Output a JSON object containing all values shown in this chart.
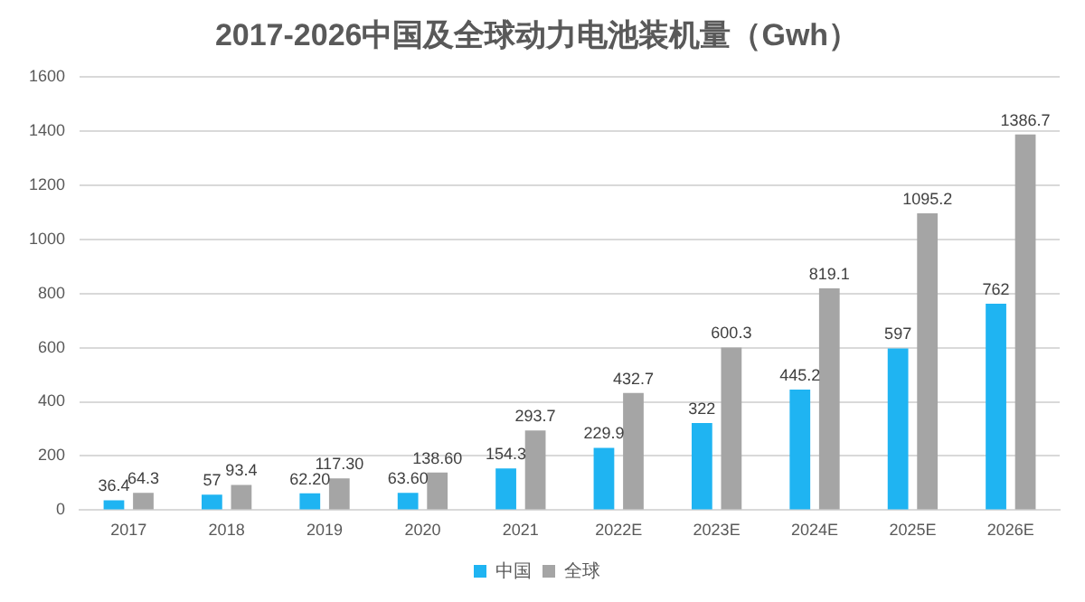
{
  "chart_data": {
    "type": "bar",
    "title": "2017-2026中国及全球动力电池装机量（Gwh）",
    "categories": [
      "2017",
      "2018",
      "2019",
      "2020",
      "2021",
      "2022E",
      "2023E",
      "2024E",
      "2025E",
      "2026E"
    ],
    "series": [
      {
        "name": "中国",
        "color": "#1fb4f2",
        "values": [
          36.4,
          57,
          62.2,
          63.6,
          154.3,
          229.9,
          322,
          445.2,
          597,
          762
        ],
        "value_labels": [
          "36.4",
          "57",
          "62.20",
          "63.60",
          "154.3",
          "229.9",
          "322",
          "445.2",
          "597",
          "762"
        ]
      },
      {
        "name": "全球",
        "color": "#a5a5a5",
        "values": [
          64.3,
          93.4,
          117.3,
          138.6,
          293.7,
          432.7,
          600.3,
          819.1,
          1095.2,
          1386.7
        ],
        "value_labels": [
          "64.3",
          "93.4",
          "117.30",
          "138.60",
          "293.7",
          "432.7",
          "600.3",
          "819.1",
          "1095.2",
          "1386.7"
        ]
      }
    ],
    "ylim": [
      0,
      1600
    ],
    "yticks": [
      0,
      200,
      400,
      600,
      800,
      1000,
      1200,
      1400,
      1600
    ],
    "grid": "y",
    "legend": "bottom"
  }
}
